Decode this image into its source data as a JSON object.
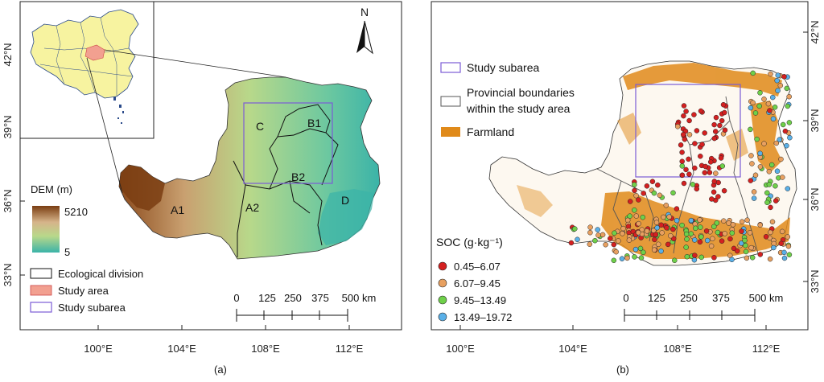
{
  "panel_a": {
    "caption": "(a)",
    "north_label": "N",
    "lat_labels": [
      "42°N",
      "39°N",
      "36°N",
      "33°N"
    ],
    "lon_labels": [
      "100°E",
      "104°E",
      "108°E",
      "112°E"
    ],
    "region_labels": [
      "C",
      "B1",
      "B2",
      "A1",
      "A2",
      "D"
    ],
    "dem_title": "DEM (m)",
    "dem_max": "5210",
    "dem_min": "5",
    "legend": [
      "Ecological division",
      "Study area",
      "Study subarea"
    ],
    "scale_ticks": [
      "0",
      "125",
      "250",
      "375",
      "500 km"
    ],
    "colors": {
      "high_dem": "#8b4a1c",
      "mid_dem": "#b8d88a",
      "low_dem": "#3bb3a8",
      "study_area": "#f2a090",
      "subarea": "#7b5cd6",
      "china_fill": "#f7f3a0"
    }
  },
  "panel_b": {
    "caption": "(b)",
    "lat_labels": [
      "42°N",
      "39°N",
      "36°N",
      "33°N"
    ],
    "lon_labels": [
      "100°E",
      "104°E",
      "108°E",
      "112°E"
    ],
    "legend": [
      "Study subarea",
      "Provincial boundaries",
      "within the study area",
      "Farmland"
    ],
    "soc_title": "SOC (g·kg⁻¹)",
    "soc_classes": [
      "0.45–6.07",
      "6.07–9.45",
      "9.45–13.49",
      "13.49–19.72"
    ],
    "soc_colors": [
      "#d42020",
      "#e8a060",
      "#6fd04a",
      "#5ab0e8"
    ],
    "scale_ticks": [
      "0",
      "125",
      "250",
      "375",
      "500 km"
    ],
    "colors": {
      "farmland": "#e08a1a",
      "subarea": "#7b5cd6",
      "province": "#555555"
    }
  }
}
